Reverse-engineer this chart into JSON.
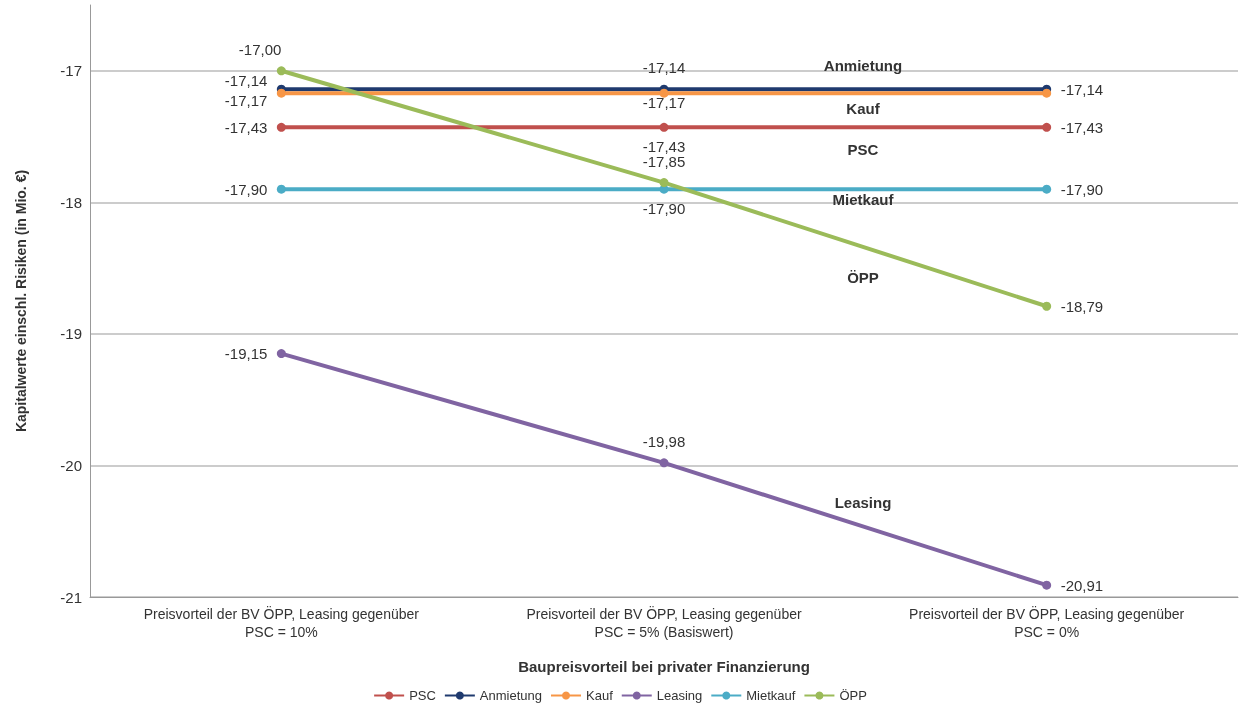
{
  "chart_data": {
    "type": "line",
    "xlabel": "Baupreisvorteil bei privater Finanzierung",
    "ylabel": "Kapitalwerte einschl. Risiken (in Mio. €)",
    "categories": [
      "Preisvorteil der BV ÖPP, Leasing gegenüber\nPSC = 10%",
      "Preisvorteil der BV ÖPP, Leasing gegenüber\nPSC = 5% (Basiswert)",
      "Preisvorteil der BV ÖPP, Leasing gegenüber\nPSC = 0%"
    ],
    "series": [
      {
        "name": "PSC",
        "color": "#c0504d",
        "values": [
          -17.43,
          -17.43,
          -17.43
        ],
        "value_labels": [
          "-17,43",
          "-17,43",
          "-17,43"
        ]
      },
      {
        "name": "Anmietung",
        "color": "#1f3a6e",
        "values": [
          -17.14,
          -17.14,
          -17.14
        ],
        "value_labels": [
          "-17,14",
          "-17,14",
          "-17,14"
        ]
      },
      {
        "name": "Kauf",
        "color": "#f79646",
        "values": [
          -17.17,
          -17.17,
          -17.17
        ],
        "value_labels": [
          "-17,17",
          "-17,17",
          null
        ]
      },
      {
        "name": "Leasing",
        "color": "#8064a2",
        "values": [
          -19.15,
          -19.98,
          -20.91
        ],
        "value_labels": [
          "-19,15",
          "-19,98",
          "-20,91"
        ]
      },
      {
        "name": "Mietkauf",
        "color": "#4bacc6",
        "values": [
          -17.9,
          -17.9,
          -17.9
        ],
        "value_labels": [
          "-17,90",
          "-17,90",
          "-17,90"
        ]
      },
      {
        "name": "ÖPP",
        "color": "#9bbb59",
        "values": [
          -17.0,
          -17.85,
          -18.79
        ],
        "value_labels": [
          "-17,00",
          "-17,85",
          "-18,79"
        ]
      }
    ],
    "ylim": [
      -21,
      -16.5
    ],
    "yticks": [
      -17,
      -18,
      -19,
      -20,
      -21
    ],
    "grid": "y",
    "legend": "bottom",
    "marker": "circle",
    "line_style": "solid"
  }
}
